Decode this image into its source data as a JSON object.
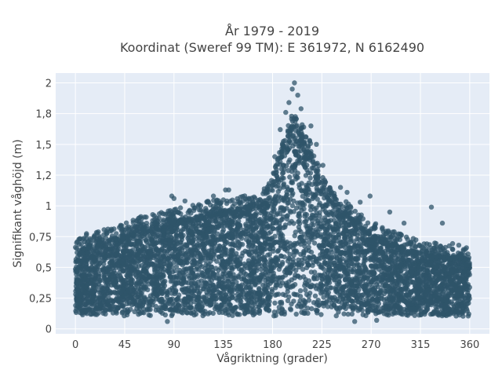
{
  "chart_data": {
    "type": "scatter",
    "title_line1": "År 1979 - 2019",
    "title_line2": "Koordinat (Sweref 99 TM): E 361972, N 6162490",
    "xlabel": "Vågriktning (grader)",
    "ylabel": "Signifikant våghöjd (m)",
    "xlim": [
      -18,
      378
    ],
    "ylim": [
      -0.04,
      2.08
    ],
    "x_ticks": [
      0,
      45,
      90,
      135,
      180,
      225,
      270,
      315,
      360
    ],
    "x_tick_labels": [
      "0",
      "45",
      "90",
      "135",
      "180",
      "225",
      "270",
      "315",
      "360"
    ],
    "y_ticks": [
      0,
      0.25,
      0.5,
      0.75,
      1,
      1.25,
      1.5,
      1.75,
      2
    ],
    "y_tick_labels": [
      "0",
      "0,25",
      "0,5",
      "0,75",
      "1",
      "1,2",
      "1,5",
      "1,8",
      "2"
    ],
    "grid": true,
    "marker_color": "#2f5469",
    "plot_background": "#e5ecf6",
    "upper_envelope": {
      "x": [
        0,
        10,
        20,
        30,
        45,
        60,
        75,
        90,
        105,
        120,
        135,
        150,
        165,
        175,
        180,
        185,
        190,
        195,
        200,
        205,
        210,
        215,
        220,
        225,
        230,
        240,
        250,
        260,
        270,
        280,
        290,
        300,
        315,
        330,
        345,
        360
      ],
      "y": [
        0.62,
        0.68,
        0.7,
        0.72,
        0.76,
        0.82,
        0.84,
        0.88,
        0.9,
        0.94,
        0.96,
        0.98,
        1.0,
        1.06,
        1.16,
        1.32,
        1.5,
        1.62,
        1.66,
        1.62,
        1.52,
        1.42,
        1.3,
        1.18,
        1.08,
        0.98,
        0.92,
        0.84,
        0.78,
        0.74,
        0.7,
        0.66,
        0.62,
        0.6,
        0.6,
        0.58
      ]
    },
    "outliers": [
      {
        "x": 200,
        "y": 2.0
      },
      {
        "x": 198,
        "y": 1.95
      },
      {
        "x": 203,
        "y": 1.9
      },
      {
        "x": 195,
        "y": 1.84
      },
      {
        "x": 206,
        "y": 1.79
      },
      {
        "x": 192,
        "y": 1.76
      },
      {
        "x": 215,
        "y": 1.65
      },
      {
        "x": 187,
        "y": 1.62
      },
      {
        "x": 220,
        "y": 1.5
      },
      {
        "x": 226,
        "y": 1.33
      },
      {
        "x": 182,
        "y": 1.4
      },
      {
        "x": 140,
        "y": 1.13
      },
      {
        "x": 137,
        "y": 1.13
      },
      {
        "x": 126,
        "y": 1.08
      },
      {
        "x": 88,
        "y": 1.08
      },
      {
        "x": 90,
        "y": 1.06
      },
      {
        "x": 260,
        "y": 1.03
      },
      {
        "x": 269,
        "y": 1.08
      },
      {
        "x": 248,
        "y": 1.11
      },
      {
        "x": 242,
        "y": 1.15
      },
      {
        "x": 325,
        "y": 0.99
      },
      {
        "x": 335,
        "y": 0.86
      },
      {
        "x": 100,
        "y": 1.04
      },
      {
        "x": 72,
        "y": 0.92
      },
      {
        "x": 56,
        "y": 0.88
      },
      {
        "x": 42,
        "y": 0.8
      },
      {
        "x": 20,
        "y": 0.78
      },
      {
        "x": 4,
        "y": 0.73
      },
      {
        "x": 300,
        "y": 0.86
      },
      {
        "x": 287,
        "y": 0.95
      },
      {
        "x": 350,
        "y": 0.68
      },
      {
        "x": 357,
        "y": 0.66
      },
      {
        "x": 84,
        "y": 0.06
      },
      {
        "x": 255,
        "y": 0.06
      },
      {
        "x": 275,
        "y": 0.07
      },
      {
        "x": 162,
        "y": 1.03
      },
      {
        "x": 172,
        "y": 1.0
      }
    ]
  }
}
